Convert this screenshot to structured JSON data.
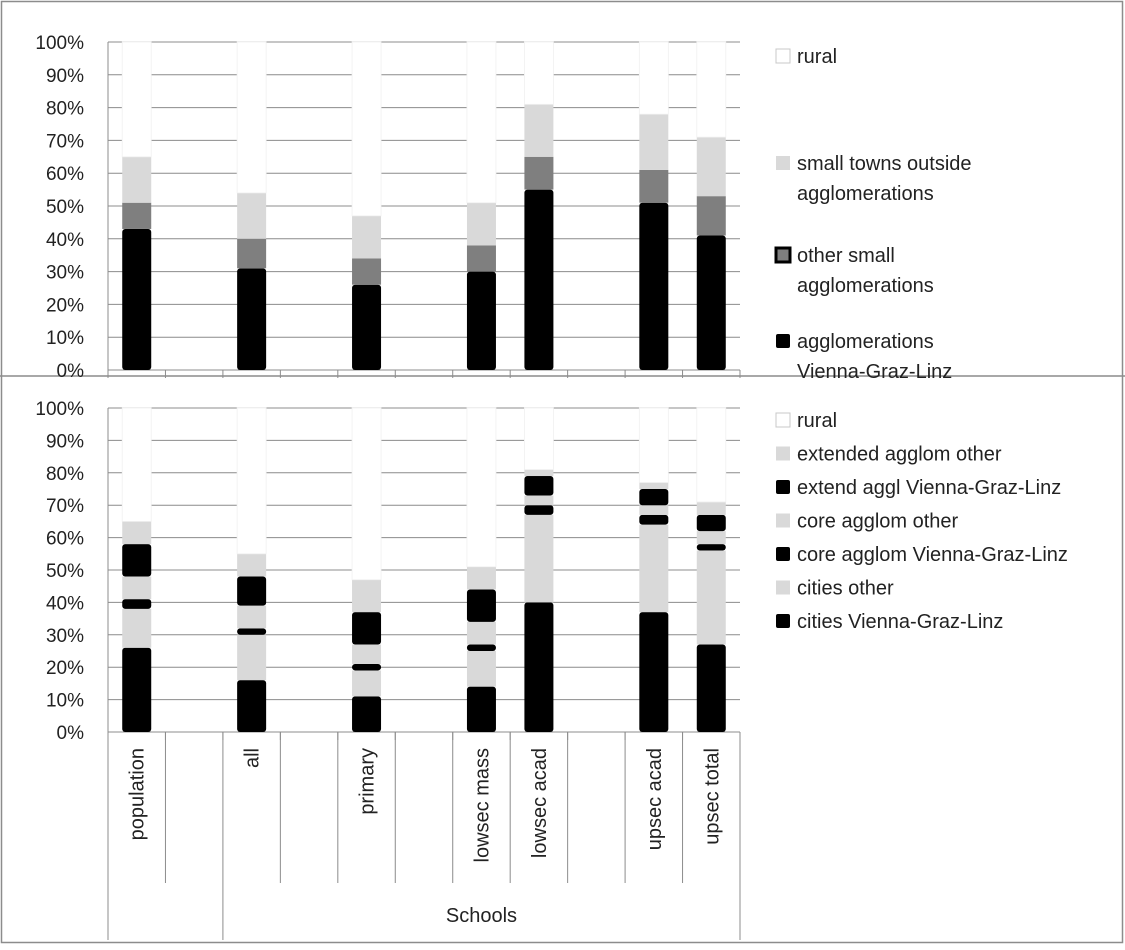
{
  "chart_data": [
    {
      "type": "bar",
      "stacked": true,
      "percent_stacked": true,
      "ylim": [
        0,
        100
      ],
      "yticks": [
        "0%",
        "10%",
        "20%",
        "30%",
        "40%",
        "50%",
        "60%",
        "70%",
        "80%",
        "90%",
        "100%"
      ],
      "grid": true,
      "legend_position": "right",
      "categories": [
        "population",
        "",
        "all",
        "",
        "primary",
        "",
        "lowsec mass",
        "lowsec acad",
        "",
        "upsec acad",
        "upsec total"
      ],
      "series": [
        {
          "name": "agglomerations Vienna-Graz-Linz",
          "color": "#000000",
          "values": [
            43,
            null,
            31,
            null,
            26,
            null,
            30,
            55,
            null,
            51,
            41
          ]
        },
        {
          "name": "other small agglomerations",
          "color": "#7f7f7f",
          "values": [
            8,
            null,
            9,
            null,
            8,
            null,
            8,
            10,
            null,
            10,
            12
          ]
        },
        {
          "name": "small towns outside agglomerations",
          "color": "#d9d9d9",
          "values": [
            14,
            null,
            14,
            null,
            13,
            null,
            13,
            16,
            null,
            17,
            18
          ]
        },
        {
          "name": "rural",
          "color": "#ffffff",
          "values": [
            35,
            null,
            46,
            null,
            53,
            null,
            49,
            19,
            null,
            22,
            29
          ]
        }
      ]
    },
    {
      "type": "bar",
      "stacked": true,
      "percent_stacked": true,
      "ylim": [
        0,
        100
      ],
      "yticks": [
        "0%",
        "10%",
        "20%",
        "30%",
        "40%",
        "50%",
        "60%",
        "70%",
        "80%",
        "90%",
        "100%"
      ],
      "grid": true,
      "legend_position": "right",
      "categories": [
        "population",
        "",
        "all",
        "",
        "primary",
        "",
        "lowsec mass",
        "lowsec acad",
        "",
        "upsec acad",
        "upsec total"
      ],
      "group_label": "Schools",
      "series": [
        {
          "name": "cities Vienna-Graz-Linz",
          "color": "#000000",
          "values": [
            26,
            null,
            16,
            null,
            11,
            null,
            14,
            40,
            null,
            37,
            27
          ]
        },
        {
          "name": "cities other",
          "color": "#d9d9d9",
          "values": [
            12,
            null,
            14,
            null,
            8,
            null,
            11,
            27,
            null,
            27,
            29
          ]
        },
        {
          "name": "core agglom Vienna-Graz-Linz",
          "color": "#000000",
          "values": [
            3,
            null,
            2,
            null,
            2,
            null,
            2,
            3,
            null,
            3,
            2
          ]
        },
        {
          "name": "core agglom other",
          "color": "#d9d9d9",
          "values": [
            7,
            null,
            7,
            null,
            6,
            null,
            7,
            3,
            null,
            3,
            4
          ]
        },
        {
          "name": "extend aggl Vienna-Graz-Linz",
          "color": "#000000",
          "values": [
            10,
            null,
            9,
            null,
            10,
            null,
            10,
            6,
            null,
            5,
            5
          ]
        },
        {
          "name": "extended agglom other",
          "color": "#d9d9d9",
          "values": [
            7,
            null,
            7,
            null,
            10,
            null,
            7,
            2,
            null,
            2,
            4
          ]
        },
        {
          "name": "rural",
          "color": "#ffffff",
          "values": [
            35,
            null,
            45,
            null,
            53,
            null,
            49,
            19,
            null,
            23,
            29
          ]
        }
      ]
    }
  ]
}
